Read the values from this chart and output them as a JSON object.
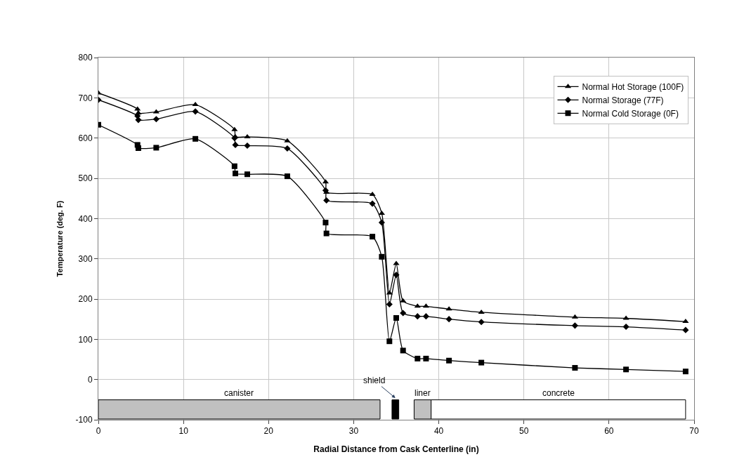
{
  "chart_data": {
    "type": "line",
    "xlabel": "Radial Distance from Cask Centerline (in)",
    "ylabel": "Temperature (deg. F)",
    "x": [
      0,
      4.6,
      4.7,
      6.8,
      11.4,
      16,
      16.1,
      17.5,
      22.2,
      26.7,
      26.8,
      32.2,
      33.3,
      34.2,
      35.0,
      35.8,
      37.5,
      38.5,
      41.2,
      45,
      56,
      62,
      69
    ],
    "series": [
      {
        "name": "Normal Hot Storage (100F)",
        "color": "#000000",
        "marker": "triangle",
        "values": [
          712,
          672,
          662,
          665,
          683,
          621,
          603,
          603,
          593,
          491,
          465,
          460,
          413,
          215,
          288,
          195,
          182,
          182,
          175,
          167,
          155,
          152,
          144
        ]
      },
      {
        "name": "Normal Storage (77F)",
        "color": "#000000",
        "marker": "diamond",
        "values": [
          695,
          655,
          645,
          647,
          666,
          600,
          583,
          581,
          574,
          470,
          445,
          437,
          390,
          187,
          260,
          165,
          157,
          157,
          150,
          143,
          134,
          131,
          123
        ]
      },
      {
        "name": "Normal Cold Storage (0F)",
        "color": "#000000",
        "marker": "square",
        "values": [
          633,
          583,
          575,
          576,
          598,
          530,
          512,
          510,
          505,
          390,
          363,
          355,
          305,
          95,
          153,
          72,
          52,
          52,
          47,
          42,
          29,
          25,
          20
        ]
      }
    ],
    "bands": [
      {
        "axis": "x",
        "from": 0,
        "to": 33.1,
        "label": "canister",
        "color": "#c0c0c0"
      },
      {
        "axis": "x",
        "from": 34.5,
        "to": 35.3,
        "label": "shield",
        "color": "#000000"
      },
      {
        "axis": "x",
        "from": 37.1,
        "to": 39.1,
        "label": "liner",
        "color": "#c0c0c0"
      },
      {
        "axis": "x",
        "from": 39.1,
        "to": 69,
        "label": "concrete",
        "color": "#ffffff"
      }
    ],
    "xlim": [
      0,
      70
    ],
    "xticks": [
      0,
      10,
      20,
      30,
      40,
      50,
      60,
      70
    ],
    "ylim": [
      -100,
      800
    ],
    "yticks": [
      -100,
      0,
      100,
      200,
      300,
      400,
      500,
      600,
      700,
      800
    ],
    "grid": true,
    "legend": "top right",
    "line_style": "solid"
  }
}
